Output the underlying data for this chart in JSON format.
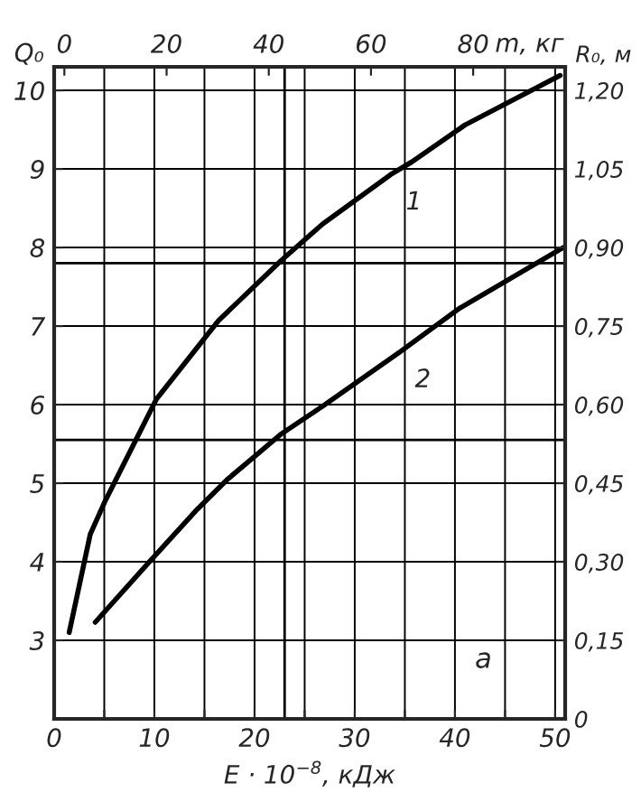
{
  "chart_data": {
    "type": "line",
    "xlabel": "E · 10$^{−8}$, кДж",
    "ylabel": "Q₀",
    "y2label": "R₀, м",
    "x2label": "m, кг",
    "x": [
      1.5,
      3.6,
      5,
      10.2,
      16.4,
      22.7,
      26.8,
      33.6,
      35.7,
      41,
      50.5
    ],
    "series": [
      {
        "name": "1",
        "color": "#000000",
        "values": [
          3.1,
          4.35,
          4.75,
          6.07,
          7.07,
          7.84,
          8.3,
          8.93,
          9.09,
          9.56,
          10.19
        ]
      },
      {
        "name": "2",
        "color": "#000000",
        "x": [
          4.1,
          9.5,
          14.3,
          17.3,
          22.7,
          26.8,
          34.5,
          40.5,
          50.8
        ],
        "values": [
          3.23,
          4.0,
          4.67,
          5.05,
          5.63,
          5.98,
          6.67,
          7.23,
          8.0
        ]
      }
    ],
    "xlim": [
      0,
      51
    ],
    "xticks": [
      0,
      {
        "value": 5,
        "label": null
      },
      10,
      {
        "value": 15,
        "label": null
      },
      20,
      {
        "value": 25,
        "label": null
      },
      30,
      {
        "value": 35,
        "label": null
      },
      40,
      {
        "value": 45,
        "label": null
      },
      50
    ],
    "ylim": [
      2,
      10.3
    ],
    "yticks": [
      {
        "value": 2,
        "label": null
      },
      3,
      4,
      5,
      6,
      7,
      8,
      9,
      10
    ],
    "y2lim": [
      0,
      1.245
    ],
    "y2ticks": [
      0,
      {
        "value": 0.15,
        "label": "0,15"
      },
      {
        "value": 0.3,
        "label": "0,30"
      },
      {
        "value": 0.45,
        "label": "0,45"
      },
      {
        "value": 0.6,
        "label": "0,60"
      },
      {
        "value": 0.75,
        "label": "0,75"
      },
      {
        "value": 0.9,
        "label": "0,90"
      },
      {
        "value": 1.05,
        "label": "1,05"
      },
      {
        "value": 1.2,
        "label": "1,20"
      }
    ],
    "x2lim": [
      -2,
      98
    ],
    "x2ticks": [
      0,
      20,
      40,
      60,
      80
    ],
    "ref_lines": [
      {
        "axis": "x",
        "value": 23
      },
      {
        "axis": "y",
        "value": 7.8
      },
      {
        "axis": "y",
        "value": 5.55
      }
    ],
    "annotations": [
      "a"
    ],
    "grid": true,
    "legend": false,
    "marker": "none",
    "line_style": "solid"
  }
}
